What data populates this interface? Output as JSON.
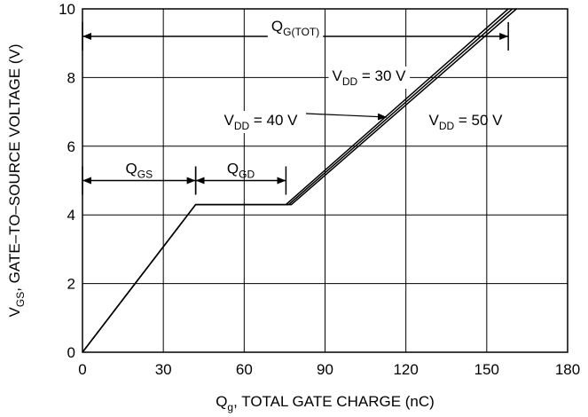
{
  "chart_data": {
    "type": "line",
    "title": "",
    "xlabel": {
      "main": "Q",
      "sub": "g",
      "rest": ", TOTAL GATE CHARGE (nC)"
    },
    "ylabel": {
      "main": "V",
      "sub": "GS",
      "rest": ", GATE–TO–SOURCE VOLTAGE (V)"
    },
    "xlim": [
      0,
      180
    ],
    "ylim": [
      0,
      10
    ],
    "x_ticks": [
      0,
      30,
      60,
      90,
      120,
      150,
      180
    ],
    "y_ticks": [
      0,
      2,
      4,
      6,
      8,
      10
    ],
    "grid": true,
    "series": [
      {
        "name": "V_DD = 50 V",
        "x": [
          0,
          42,
          75.5,
          158
        ],
        "y": [
          0,
          4.3,
          4.3,
          10
        ]
      },
      {
        "name": "V_DD = 40 V",
        "x": [
          0,
          42,
          76.5,
          159.5
        ],
        "y": [
          0,
          4.3,
          4.3,
          10
        ]
      },
      {
        "name": "V_DD = 30 V",
        "x": [
          0,
          42,
          77.5,
          161
        ],
        "y": [
          0,
          4.3,
          4.3,
          10
        ]
      }
    ],
    "annotations": {
      "qg_tot": {
        "main": "Q",
        "sub": "G(TOT)",
        "x_from": 0,
        "x_to": 158,
        "y": 9.2
      },
      "qgs": {
        "main": "Q",
        "sub": "GS",
        "x_from": 0,
        "x_to": 42,
        "y": 5
      },
      "qgd": {
        "main": "Q",
        "sub": "GD",
        "x_from": 42,
        "x_to": 75.5,
        "y": 5
      },
      "vdd30": {
        "main": "V",
        "sub": "DD",
        "rest": " = 30 V"
      },
      "vdd40": {
        "main": "V",
        "sub": "DD",
        "rest": " = 40 V"
      },
      "vdd50": {
        "main": "V",
        "sub": "DD",
        "rest": " = 50 V"
      }
    }
  }
}
